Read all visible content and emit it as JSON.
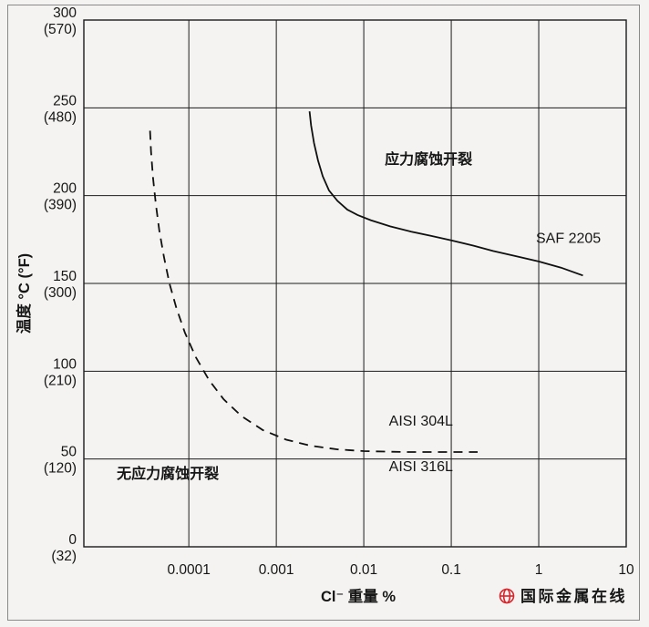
{
  "figure": {
    "background": "#f4f3f1",
    "border_color": "#8a8a8a",
    "line_color": "#1c1c1c"
  },
  "chart_data": {
    "type": "line",
    "x_axis": {
      "label": "Cl⁻ 重量 %",
      "scale": "log",
      "min_exp": -5.2,
      "max_exp": 1,
      "ticks": [
        {
          "value": 0.0001,
          "label": "0.0001"
        },
        {
          "value": 0.001,
          "label": "0.001"
        },
        {
          "value": 0.01,
          "label": "0.01"
        },
        {
          "value": 0.1,
          "label": "0.1"
        },
        {
          "value": 1,
          "label": "1"
        },
        {
          "value": 10,
          "label": "10"
        }
      ]
    },
    "y_axis": {
      "label": "温度 °C (°F)",
      "min": 0,
      "max": 300,
      "ticks": [
        {
          "value": 300,
          "celsius": "300",
          "fahrenheit": "(570)"
        },
        {
          "value": 250,
          "celsius": "250",
          "fahrenheit": "(480)"
        },
        {
          "value": 200,
          "celsius": "200",
          "fahrenheit": "(390)"
        },
        {
          "value": 150,
          "celsius": "150",
          "fahrenheit": "(300)"
        },
        {
          "value": 100,
          "celsius": "100",
          "fahrenheit": "(210)"
        },
        {
          "value": 50,
          "celsius": "50",
          "fahrenheit": "(120)"
        },
        {
          "value": 0,
          "celsius": "0",
          "fahrenheit": "(32)"
        }
      ]
    },
    "grid": {
      "x_tick_exps": [
        -4,
        -3,
        -2,
        -1,
        0
      ],
      "y_tick_values": [
        50,
        100,
        150,
        200,
        250
      ]
    },
    "series": [
      {
        "id": "saf-2205",
        "name": "SAF 2205",
        "line_style": "solid",
        "points": [
          [
            0.0024,
            248
          ],
          [
            0.0025,
            240
          ],
          [
            0.0027,
            230
          ],
          [
            0.003,
            220
          ],
          [
            0.0034,
            211
          ],
          [
            0.004,
            203
          ],
          [
            0.005,
            197
          ],
          [
            0.0065,
            192
          ],
          [
            0.0085,
            189
          ],
          [
            0.012,
            186
          ],
          [
            0.02,
            182.5
          ],
          [
            0.035,
            179.5
          ],
          [
            0.06,
            177
          ],
          [
            0.1,
            174.5
          ],
          [
            0.18,
            171.5
          ],
          [
            0.3,
            168.5
          ],
          [
            0.55,
            165.5
          ],
          [
            1,
            162.5
          ],
          [
            1.8,
            159
          ],
          [
            3.2,
            154.5
          ]
        ]
      },
      {
        "id": "aisi-304l-316l",
        "name": "AISI 304L / AISI 316L",
        "line_style": "dashed",
        "points": [
          [
            3.6e-05,
            237
          ],
          [
            3.7e-05,
            225
          ],
          [
            3.9e-05,
            210
          ],
          [
            4.2e-05,
            195
          ],
          [
            4.6e-05,
            180
          ],
          [
            5.2e-05,
            165
          ],
          [
            6e-05,
            150
          ],
          [
            7.2e-05,
            136
          ],
          [
            9e-05,
            122
          ],
          [
            0.00012,
            108
          ],
          [
            0.00017,
            95
          ],
          [
            0.00025,
            84
          ],
          [
            0.0004,
            74.5
          ],
          [
            0.0007,
            66.5
          ],
          [
            0.0013,
            61
          ],
          [
            0.0025,
            57.5
          ],
          [
            0.005,
            55.5
          ],
          [
            0.01,
            54.5
          ],
          [
            0.03,
            54
          ],
          [
            0.08,
            54
          ],
          [
            0.2,
            54
          ]
        ]
      }
    ],
    "annotations": [
      {
        "id": "scc-region",
        "text": "应力腐蚀开裂",
        "x": 0.055,
        "t": 218,
        "anchor": "middle",
        "weight": "bold"
      },
      {
        "id": "saf-2205-label",
        "text": "SAF 2205",
        "x": 0.93,
        "t": 173,
        "anchor": "start",
        "weight": "normal"
      },
      {
        "id": "aisi-304l-label",
        "text": "AISI 304L",
        "x": 0.045,
        "t": 69,
        "anchor": "middle",
        "weight": "normal"
      },
      {
        "id": "aisi-316l-label",
        "text": "AISI 316L",
        "x": 0.045,
        "t": 43,
        "anchor": "middle",
        "weight": "normal"
      },
      {
        "id": "no-scc-region",
        "text": "无应力腐蚀开裂",
        "x": 1.5e-05,
        "t": 39,
        "anchor": "start",
        "weight": "bold"
      }
    ]
  },
  "watermark": {
    "text": "国际金属在线",
    "color": "#d7262c"
  }
}
